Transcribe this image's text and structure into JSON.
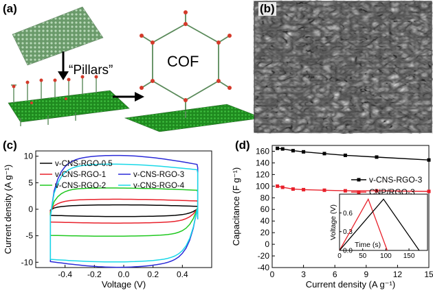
{
  "panel_labels": {
    "a": "(a)",
    "b": "(b)",
    "c": "(c)",
    "d": "(d)"
  },
  "schematic": {
    "pillars_label": "“Pillars”",
    "cof_label": "COF"
  },
  "chart_data": [
    {
      "type": "line",
      "panel": "(c)",
      "xlabel": "Voltage (V)",
      "ylabel": "Current density (A g⁻¹)",
      "xlim": [
        -0.6,
        0.6
      ],
      "ylim": [
        -11,
        11
      ],
      "x_ticks": [
        -0.4,
        -0.2,
        0.0,
        0.2,
        0.4
      ],
      "x_tick_labels": [
        "-0.4",
        "-0.2",
        "0.0",
        "0.2",
        "0.4"
      ],
      "y_ticks": [
        -10,
        -5,
        0,
        5,
        10
      ],
      "y_tick_labels": [
        "-10",
        "-5",
        "0",
        "5",
        "10"
      ],
      "legend_columns": 2,
      "legend_placement": "top",
      "series": [
        {
          "name": "v-CNS-RGO-0.5",
          "color": "#000000",
          "v_min": -0.5,
          "v_max": 0.5,
          "anodic_plateau": 0.6,
          "cathodic_plateau": -1.1
        },
        {
          "name": "v-CNS-RGO-1",
          "color": "#e8202a",
          "v_min": -0.5,
          "v_max": 0.5,
          "anodic_plateau": 1.7,
          "cathodic_plateau": -2.3
        },
        {
          "name": "v-CNS-RGO-2",
          "color": "#1fc81f",
          "v_min": -0.5,
          "v_max": 0.5,
          "anodic_plateau": 3.9,
          "cathodic_plateau": -4.7
        },
        {
          "name": "v-CNS-RGO-3",
          "color": "#2a2ad8",
          "v_min": -0.5,
          "v_max": 0.5,
          "anodic_plateau": 9.2,
          "cathodic_plateau": -9.4
        },
        {
          "name": "v-CNS-RGO-4",
          "color": "#18d8e8",
          "v_min": -0.5,
          "v_max": 0.5,
          "anodic_plateau": 8.1,
          "cathodic_plateau": -9.0
        }
      ]
    },
    {
      "type": "line",
      "panel": "(d)",
      "xlabel": "Current density (A g⁻¹)",
      "ylabel": "Capacitance (F g⁻¹)",
      "xlim": [
        0,
        15
      ],
      "ylim": [
        -40,
        170
      ],
      "x_ticks": [
        0,
        3,
        6,
        9,
        12,
        15
      ],
      "x_tick_labels": [
        "0",
        "3",
        "6",
        "9",
        "12",
        "15"
      ],
      "y_ticks": [
        -40,
        -20,
        0,
        20,
        40,
        60,
        80,
        100,
        120,
        140,
        160
      ],
      "y_tick_labels": [
        "-40",
        "-20",
        "0",
        "20",
        "40",
        "60",
        "80",
        "100",
        "120",
        "140",
        "160"
      ],
      "legend_placement": "right",
      "series": [
        {
          "name": "v-CNS-RGO-3",
          "color": "#000000",
          "x": [
            0.5,
            1,
            2,
            3,
            5,
            7,
            10,
            15
          ],
          "y": [
            165,
            164,
            161,
            159,
            156,
            153,
            150,
            145
          ]
        },
        {
          "name": "CNP/RGO-3",
          "color": "#e8202a",
          "x": [
            0.5,
            1,
            2,
            3,
            5,
            7,
            10,
            15
          ],
          "y": [
            100,
            98,
            95,
            94,
            93,
            92,
            92,
            91
          ]
        }
      ],
      "inset": {
        "xlabel": "Time (s)",
        "ylabel": "Voltage (V)",
        "xlim": [
          0,
          190
        ],
        "ylim": [
          0,
          0.9
        ],
        "x_ticks": [
          0,
          50,
          100,
          150
        ],
        "x_tick_labels": [
          "0",
          "50",
          "100",
          "150"
        ],
        "y_ticks": [
          0.0,
          0.3,
          0.6
        ],
        "y_tick_labels": [
          "0.0",
          "0.3",
          "0.6"
        ],
        "series": [
          {
            "color": "#e8202a",
            "x": [
              0,
              62,
              103
            ],
            "y": [
              0,
              0.82,
              0
            ]
          },
          {
            "color": "#000000",
            "x": [
              0,
              95,
              172
            ],
            "y": [
              0,
              0.82,
              0
            ]
          }
        ]
      }
    }
  ]
}
